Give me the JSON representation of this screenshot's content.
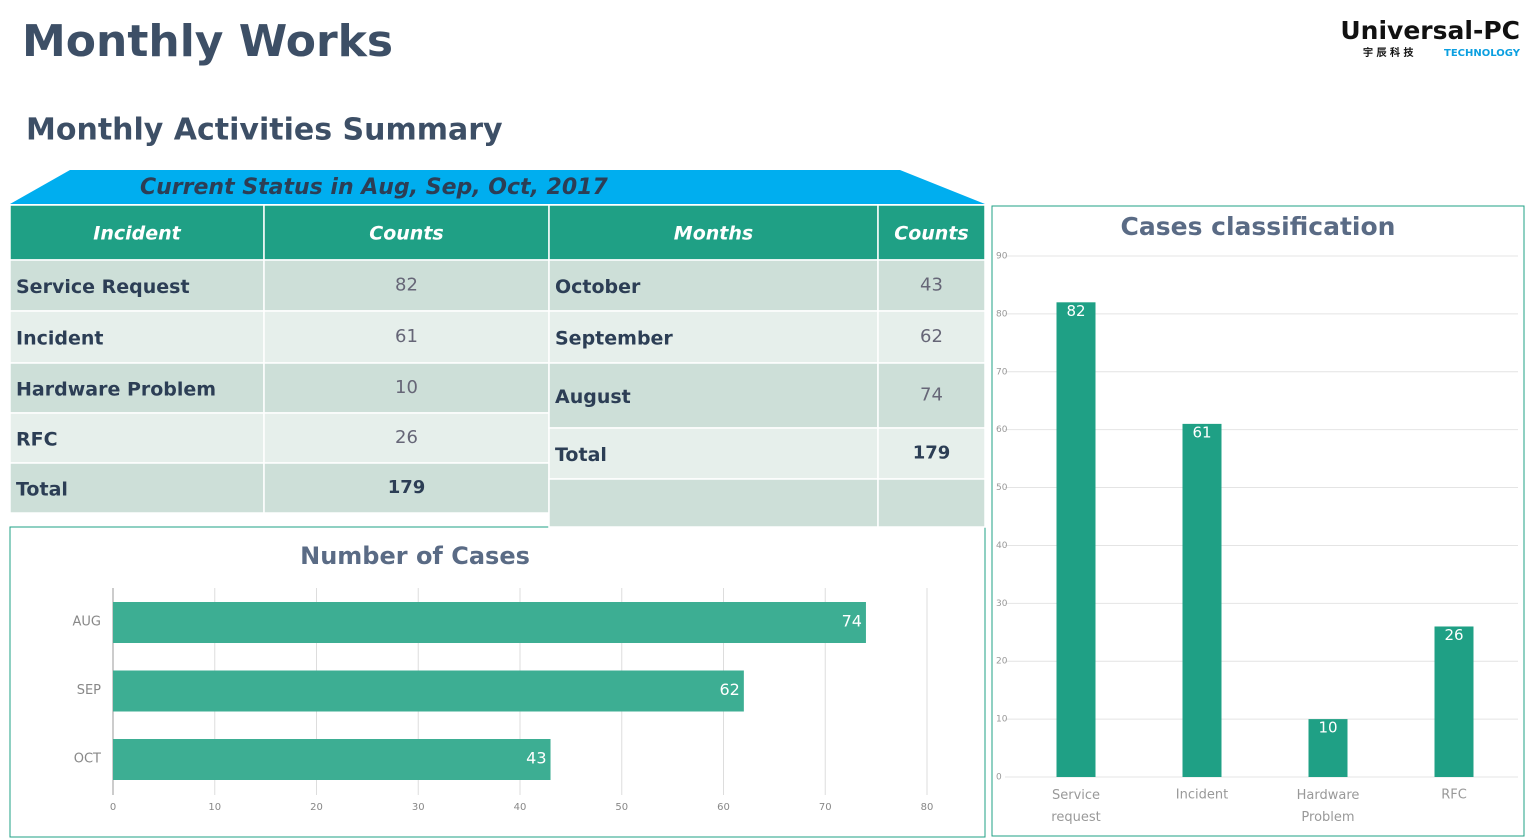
{
  "header": {
    "title": "Monthly Works",
    "logo": "Universal-PC",
    "logo_sub": "宇 辰 科 技",
    "logo_tech": "TECHNOLOGY"
  },
  "subtitle": "Monthly Activities Summary",
  "banner": "Current Status in Aug, Sep, Oct, 2017",
  "tables": [
    {
      "header": [
        "Incident",
        "Counts"
      ],
      "rows": [
        [
          "Service Request",
          82
        ],
        [
          "Incident",
          61
        ],
        [
          "Hardware Problem",
          10
        ],
        [
          "RFC",
          26
        ],
        [
          "Total",
          179
        ]
      ]
    },
    {
      "header": [
        "Months",
        "Counts"
      ],
      "rows": [
        [
          "October",
          43
        ],
        [
          "September",
          62
        ],
        [
          "August",
          74
        ],
        [
          "Total",
          179
        ]
      ]
    }
  ],
  "chart_data": [
    {
      "type": "hbar",
      "title": "Number of Cases",
      "categories": [
        "AUG",
        "SEP",
        "OCT"
      ],
      "values": [
        74,
        62,
        43
      ],
      "color": "#3dae93",
      "xlim": [
        0,
        80
      ],
      "xticks": [
        0,
        10,
        20,
        30,
        40,
        50,
        60,
        70,
        80
      ],
      "grid": true
    },
    {
      "type": "bar",
      "title": "Cases classification",
      "categories": [
        "Service request",
        "Incident",
        "Hardware Problem",
        "RFC"
      ],
      "values": [
        82,
        61,
        10,
        26
      ],
      "color": "#1fa085",
      "ylim": [
        0,
        90
      ],
      "yticks": [
        0,
        10,
        20,
        30,
        40,
        50,
        60,
        70,
        80,
        90
      ],
      "grid": true
    }
  ]
}
